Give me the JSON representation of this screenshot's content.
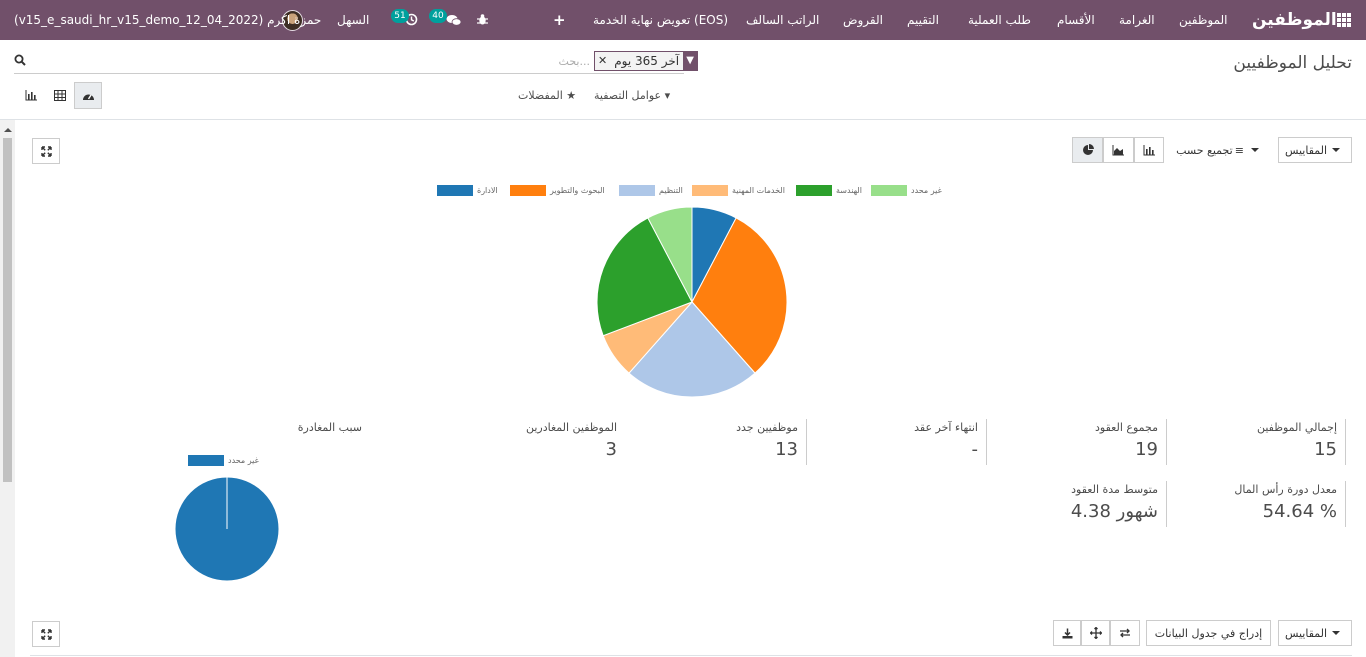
{
  "navbar": {
    "app_name": "الموظفين",
    "menu": [
      "الموظفين",
      "الغرامة",
      "الأقسام",
      "طلب العملية",
      "التقييم",
      "القروض",
      "الراتب السالف",
      "تعويض نهاية الخدمة (EOS)"
    ],
    "company": "السهل",
    "activity_count": "51",
    "messages_count": "40",
    "user": "حمزة اكرم (v15_e_saudi_hr_v15_demo_12_04_2022)"
  },
  "control_panel": {
    "title": "تحليل الموظفيين",
    "facet": "آخر 365 يوم",
    "search_placeholder": "بحث...",
    "filters_label": "عوامل التصفية",
    "favorites_label": "المفضلات"
  },
  "graph_toolbar": {
    "measures_label": "المقاييس",
    "groupby_label": "تجميع حسب"
  },
  "chart_data": [
    {
      "type": "pie",
      "title": "",
      "categories": [
        "الادارة",
        "البحوث والتطوير",
        "التنظيم",
        "الخدمات المهنية",
        "الهندسة",
        "غير محدد"
      ],
      "values": [
        1,
        4,
        3,
        1,
        3,
        1
      ],
      "colors": [
        "#1f77b4",
        "#ff7f0e",
        "#aec7e8",
        "#ffbb78",
        "#2ca02c",
        "#98df8a"
      ],
      "legend": "top"
    },
    {
      "type": "pie",
      "title": "سبب المغادرة",
      "categories": [
        "غير محدد"
      ],
      "values": [
        3
      ],
      "colors": [
        "#1f77b4"
      ],
      "legend": "top"
    }
  ],
  "kpis": [
    {
      "label": "إجمالي الموظفين",
      "value": "15"
    },
    {
      "label": "مجموع العقود",
      "value": "19"
    },
    {
      "label": "انتهاء آخر عقد",
      "value": "-"
    },
    {
      "label": "موظفيين جدد",
      "value": "13"
    },
    {
      "label": "الموظفين المغادرين",
      "value": "3"
    },
    {
      "label": "معدل دورة رأس المال",
      "value": "54.64 %"
    },
    {
      "label": "متوسط مدة العقود",
      "value": "4.38 شهور"
    }
  ],
  "pivot_toolbar": {
    "measures_label": "المقاييس",
    "insert_label": "إدراج في جدول البيانات"
  }
}
